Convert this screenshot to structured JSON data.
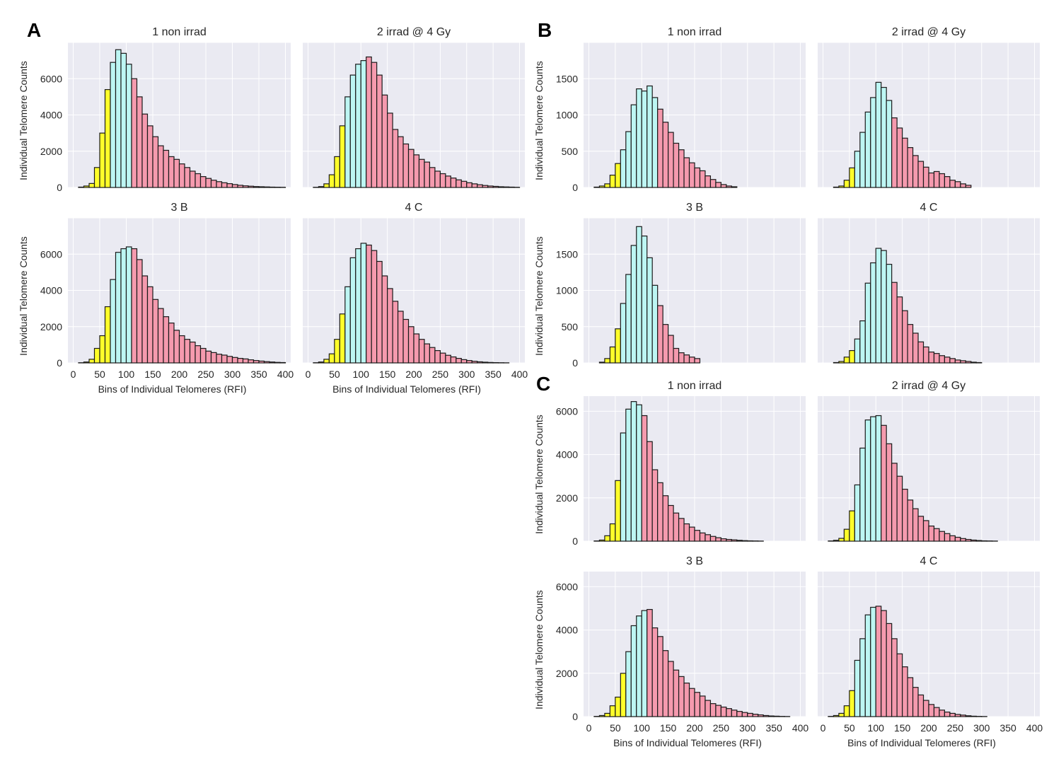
{
  "colors": {
    "low": "#ffff2a",
    "mid": "#bdf6f3",
    "high": "#f59aae",
    "plot_background": "#eaeaf2",
    "grid": "#ffffff"
  },
  "panel_letters": [
    "A",
    "B",
    "C"
  ],
  "chart_data": [
    {
      "type": "bar",
      "panel": "A",
      "title": "1 non irrad",
      "ylabel": "Individual Telomere Counts",
      "xlabel": "",
      "xlim": [
        -10,
        410
      ],
      "ylim": [
        0,
        8000
      ],
      "yticks": [
        0,
        2000,
        4000,
        6000
      ],
      "xticks": [],
      "bin_start": 0,
      "bin_width": 10,
      "color_split": [
        70,
        110
      ],
      "values": [
        0,
        20,
        80,
        220,
        1100,
        3000,
        5400,
        6900,
        7600,
        7400,
        6800,
        6000,
        5000,
        4050,
        3400,
        2800,
        2300,
        2050,
        1700,
        1550,
        1300,
        1100,
        900,
        760,
        600,
        500,
        400,
        320,
        260,
        210,
        160,
        120,
        90,
        70,
        50,
        40,
        30,
        20,
        15,
        10
      ]
    },
    {
      "type": "bar",
      "panel": "A",
      "title": "2 irrad @ 4 Gy",
      "ylabel": "",
      "xlabel": "",
      "xlim": [
        -10,
        410
      ],
      "ylim": [
        0,
        8000
      ],
      "yticks": [],
      "xticks": [],
      "bin_start": 0,
      "bin_width": 10,
      "color_split": [
        70,
        110
      ],
      "values": [
        0,
        10,
        50,
        200,
        700,
        1700,
        3400,
        5000,
        6200,
        6800,
        7000,
        7200,
        6900,
        6200,
        5100,
        4100,
        3200,
        2800,
        2400,
        2100,
        1800,
        1550,
        1400,
        1100,
        900,
        760,
        630,
        520,
        420,
        340,
        260,
        200,
        150,
        110,
        80,
        60,
        40,
        30,
        20,
        10
      ]
    },
    {
      "type": "bar",
      "panel": "A",
      "title": "3 B",
      "ylabel": "Individual Telomere Counts",
      "xlabel": "Bins of Individual Telomeres (RFI)",
      "xlim": [
        -10,
        410
      ],
      "ylim": [
        0,
        8000
      ],
      "yticks": [
        0,
        2000,
        4000,
        6000
      ],
      "xticks": [
        0,
        50,
        100,
        150,
        200,
        250,
        300,
        350,
        400
      ],
      "bin_start": 0,
      "bin_width": 10,
      "color_split": [
        70,
        110
      ],
      "values": [
        0,
        10,
        50,
        200,
        800,
        1500,
        3100,
        4600,
        6100,
        6300,
        6400,
        6300,
        5700,
        4800,
        4200,
        3500,
        3000,
        2550,
        2200,
        1800,
        1500,
        1300,
        1150,
        950,
        800,
        650,
        570,
        480,
        430,
        360,
        300,
        250,
        220,
        170,
        130,
        100,
        70,
        50,
        30,
        20
      ]
    },
    {
      "type": "bar",
      "panel": "A",
      "title": "4 C",
      "ylabel": "",
      "xlabel": "Bins of Individual Telomeres (RFI)",
      "xlim": [
        -10,
        410
      ],
      "ylim": [
        0,
        8000
      ],
      "yticks": [],
      "xticks": [
        0,
        50,
        100,
        150,
        200,
        250,
        300,
        350,
        400
      ],
      "bin_start": 0,
      "bin_width": 10,
      "color_split": [
        70,
        110
      ],
      "values": [
        0,
        10,
        50,
        200,
        500,
        1300,
        2700,
        4200,
        5800,
        6300,
        6600,
        6500,
        6200,
        5600,
        4800,
        4100,
        3400,
        2850,
        2400,
        2000,
        1600,
        1300,
        1050,
        850,
        680,
        540,
        420,
        330,
        250,
        180,
        130,
        90,
        60,
        40,
        25,
        15,
        10,
        5,
        0,
        0
      ]
    },
    {
      "type": "bar",
      "panel": "B",
      "title": "1 non irrad",
      "ylabel": "Individual Telomere Counts",
      "xlabel": "",
      "xlim": [
        -10,
        410
      ],
      "ylim": [
        0,
        2000
      ],
      "yticks": [
        0,
        500,
        1000,
        1500
      ],
      "xticks": [],
      "bin_start": 0,
      "bin_width": 10,
      "color_split": [
        60,
        130
      ],
      "values": [
        0,
        5,
        20,
        50,
        170,
        330,
        520,
        770,
        1140,
        1360,
        1330,
        1400,
        1240,
        1080,
        900,
        760,
        610,
        520,
        410,
        340,
        270,
        230,
        160,
        110,
        70,
        40,
        20,
        10,
        0,
        0,
        0,
        0,
        0,
        0,
        0,
        0,
        0,
        0,
        0,
        0
      ]
    },
    {
      "type": "bar",
      "panel": "B",
      "title": "2 irrad @ 4 Gy",
      "ylabel": "",
      "xlabel": "",
      "xlim": [
        -10,
        410
      ],
      "ylim": [
        0,
        2000
      ],
      "yticks": [],
      "xticks": [],
      "bin_start": 0,
      "bin_width": 10,
      "color_split": [
        60,
        130
      ],
      "values": [
        0,
        0,
        5,
        20,
        100,
        270,
        500,
        760,
        1040,
        1240,
        1450,
        1380,
        1200,
        960,
        820,
        680,
        550,
        440,
        360,
        280,
        200,
        220,
        190,
        150,
        100,
        80,
        50,
        30,
        0,
        0,
        0,
        0,
        0,
        0,
        0,
        0,
        0,
        0,
        0,
        0
      ]
    },
    {
      "type": "bar",
      "panel": "B",
      "title": "3 B",
      "ylabel": "Individual Telomere Counts",
      "xlabel": "",
      "xlim": [
        -10,
        410
      ],
      "ylim": [
        0,
        2000
      ],
      "yticks": [
        0,
        500,
        1000,
        1500
      ],
      "xticks": [],
      "bin_start": 0,
      "bin_width": 10,
      "color_split": [
        60,
        130
      ],
      "values": [
        0,
        0,
        10,
        60,
        220,
        470,
        820,
        1220,
        1620,
        1880,
        1750,
        1450,
        1070,
        790,
        530,
        380,
        200,
        140,
        110,
        80,
        60,
        0,
        0,
        0,
        0,
        0,
        0,
        0,
        0,
        0,
        0,
        0,
        0,
        0,
        0,
        0,
        0,
        0,
        0,
        0
      ]
    },
    {
      "type": "bar",
      "panel": "B",
      "title": "4 C",
      "ylabel": "",
      "xlabel": "",
      "xlim": [
        -10,
        410
      ],
      "ylim": [
        0,
        2000
      ],
      "yticks": [],
      "xticks": [],
      "bin_start": 0,
      "bin_width": 10,
      "color_split": [
        60,
        130
      ],
      "values": [
        0,
        0,
        5,
        20,
        80,
        170,
        330,
        580,
        1100,
        1380,
        1580,
        1550,
        1360,
        1110,
        910,
        720,
        530,
        410,
        290,
        220,
        150,
        130,
        100,
        80,
        60,
        40,
        30,
        20,
        10,
        5,
        0,
        0,
        0,
        0,
        0,
        0,
        0,
        0,
        0,
        0
      ]
    },
    {
      "type": "bar",
      "panel": "C",
      "title": "1 non irrad",
      "ylabel": "Individual Telomere Counts",
      "xlabel": "",
      "xlim": [
        -10,
        410
      ],
      "ylim": [
        0,
        6700
      ],
      "yticks": [
        0,
        2000,
        4000,
        6000
      ],
      "xticks": [],
      "bin_start": 0,
      "bin_width": 10,
      "color_split": [
        60,
        100
      ],
      "values": [
        0,
        10,
        50,
        250,
        800,
        2800,
        5000,
        6100,
        6450,
        6300,
        5800,
        4600,
        3300,
        2700,
        2100,
        1650,
        1300,
        1050,
        800,
        650,
        500,
        380,
        300,
        220,
        160,
        110,
        80,
        60,
        40,
        25,
        15,
        10,
        5,
        0,
        0,
        0,
        0,
        0,
        0,
        0
      ]
    },
    {
      "type": "bar",
      "panel": "C",
      "title": "2 irrad @ 4 Gy",
      "ylabel": "",
      "xlabel": "",
      "xlim": [
        -10,
        410
      ],
      "ylim": [
        0,
        6700
      ],
      "yticks": [],
      "xticks": [],
      "bin_start": 0,
      "bin_width": 10,
      "color_split": [
        60,
        110
      ],
      "values": [
        0,
        10,
        40,
        130,
        550,
        1400,
        2600,
        4300,
        5600,
        5750,
        5800,
        5350,
        4500,
        3600,
        3000,
        2400,
        1900,
        1500,
        1150,
        950,
        700,
        580,
        450,
        350,
        250,
        180,
        120,
        80,
        50,
        30,
        15,
        10,
        5,
        0,
        0,
        0,
        0,
        0,
        0,
        0
      ]
    },
    {
      "type": "bar",
      "panel": "C",
      "title": "3 B",
      "ylabel": "Individual Telomere Counts",
      "xlabel": "Bins of Individual Telomeres (RFI)",
      "xlim": [
        -10,
        410
      ],
      "ylim": [
        0,
        6700
      ],
      "yticks": [
        0,
        2000,
        4000,
        6000
      ],
      "xticks": [
        0,
        50,
        100,
        150,
        200,
        250,
        300,
        350,
        400
      ],
      "bin_start": 0,
      "bin_width": 10,
      "color_split": [
        70,
        110
      ],
      "values": [
        0,
        10,
        50,
        150,
        500,
        900,
        2000,
        3000,
        4200,
        4650,
        4900,
        4950,
        4100,
        3700,
        3050,
        2550,
        2150,
        1850,
        1550,
        1300,
        1120,
        950,
        750,
        600,
        520,
        440,
        370,
        300,
        240,
        190,
        150,
        110,
        80,
        50,
        30,
        20,
        10,
        5,
        0,
        0
      ]
    },
    {
      "type": "bar",
      "panel": "C",
      "title": "4 C",
      "ylabel": "",
      "xlabel": "Bins of Individual Telomeres (RFI)",
      "xlim": [
        -10,
        410
      ],
      "ylim": [
        0,
        6700
      ],
      "yticks": [],
      "xticks": [
        0,
        50,
        100,
        150,
        200,
        250,
        300,
        350,
        400
      ],
      "bin_start": 0,
      "bin_width": 10,
      "color_split": [
        60,
        100
      ],
      "values": [
        0,
        10,
        50,
        150,
        500,
        1200,
        2600,
        3600,
        4700,
        5050,
        5100,
        4900,
        4300,
        3600,
        2900,
        2300,
        1800,
        1350,
        1000,
        750,
        560,
        420,
        300,
        210,
        150,
        100,
        70,
        40,
        20,
        10,
        5,
        0,
        0,
        0,
        0,
        0,
        0,
        0,
        0,
        0
      ]
    }
  ]
}
